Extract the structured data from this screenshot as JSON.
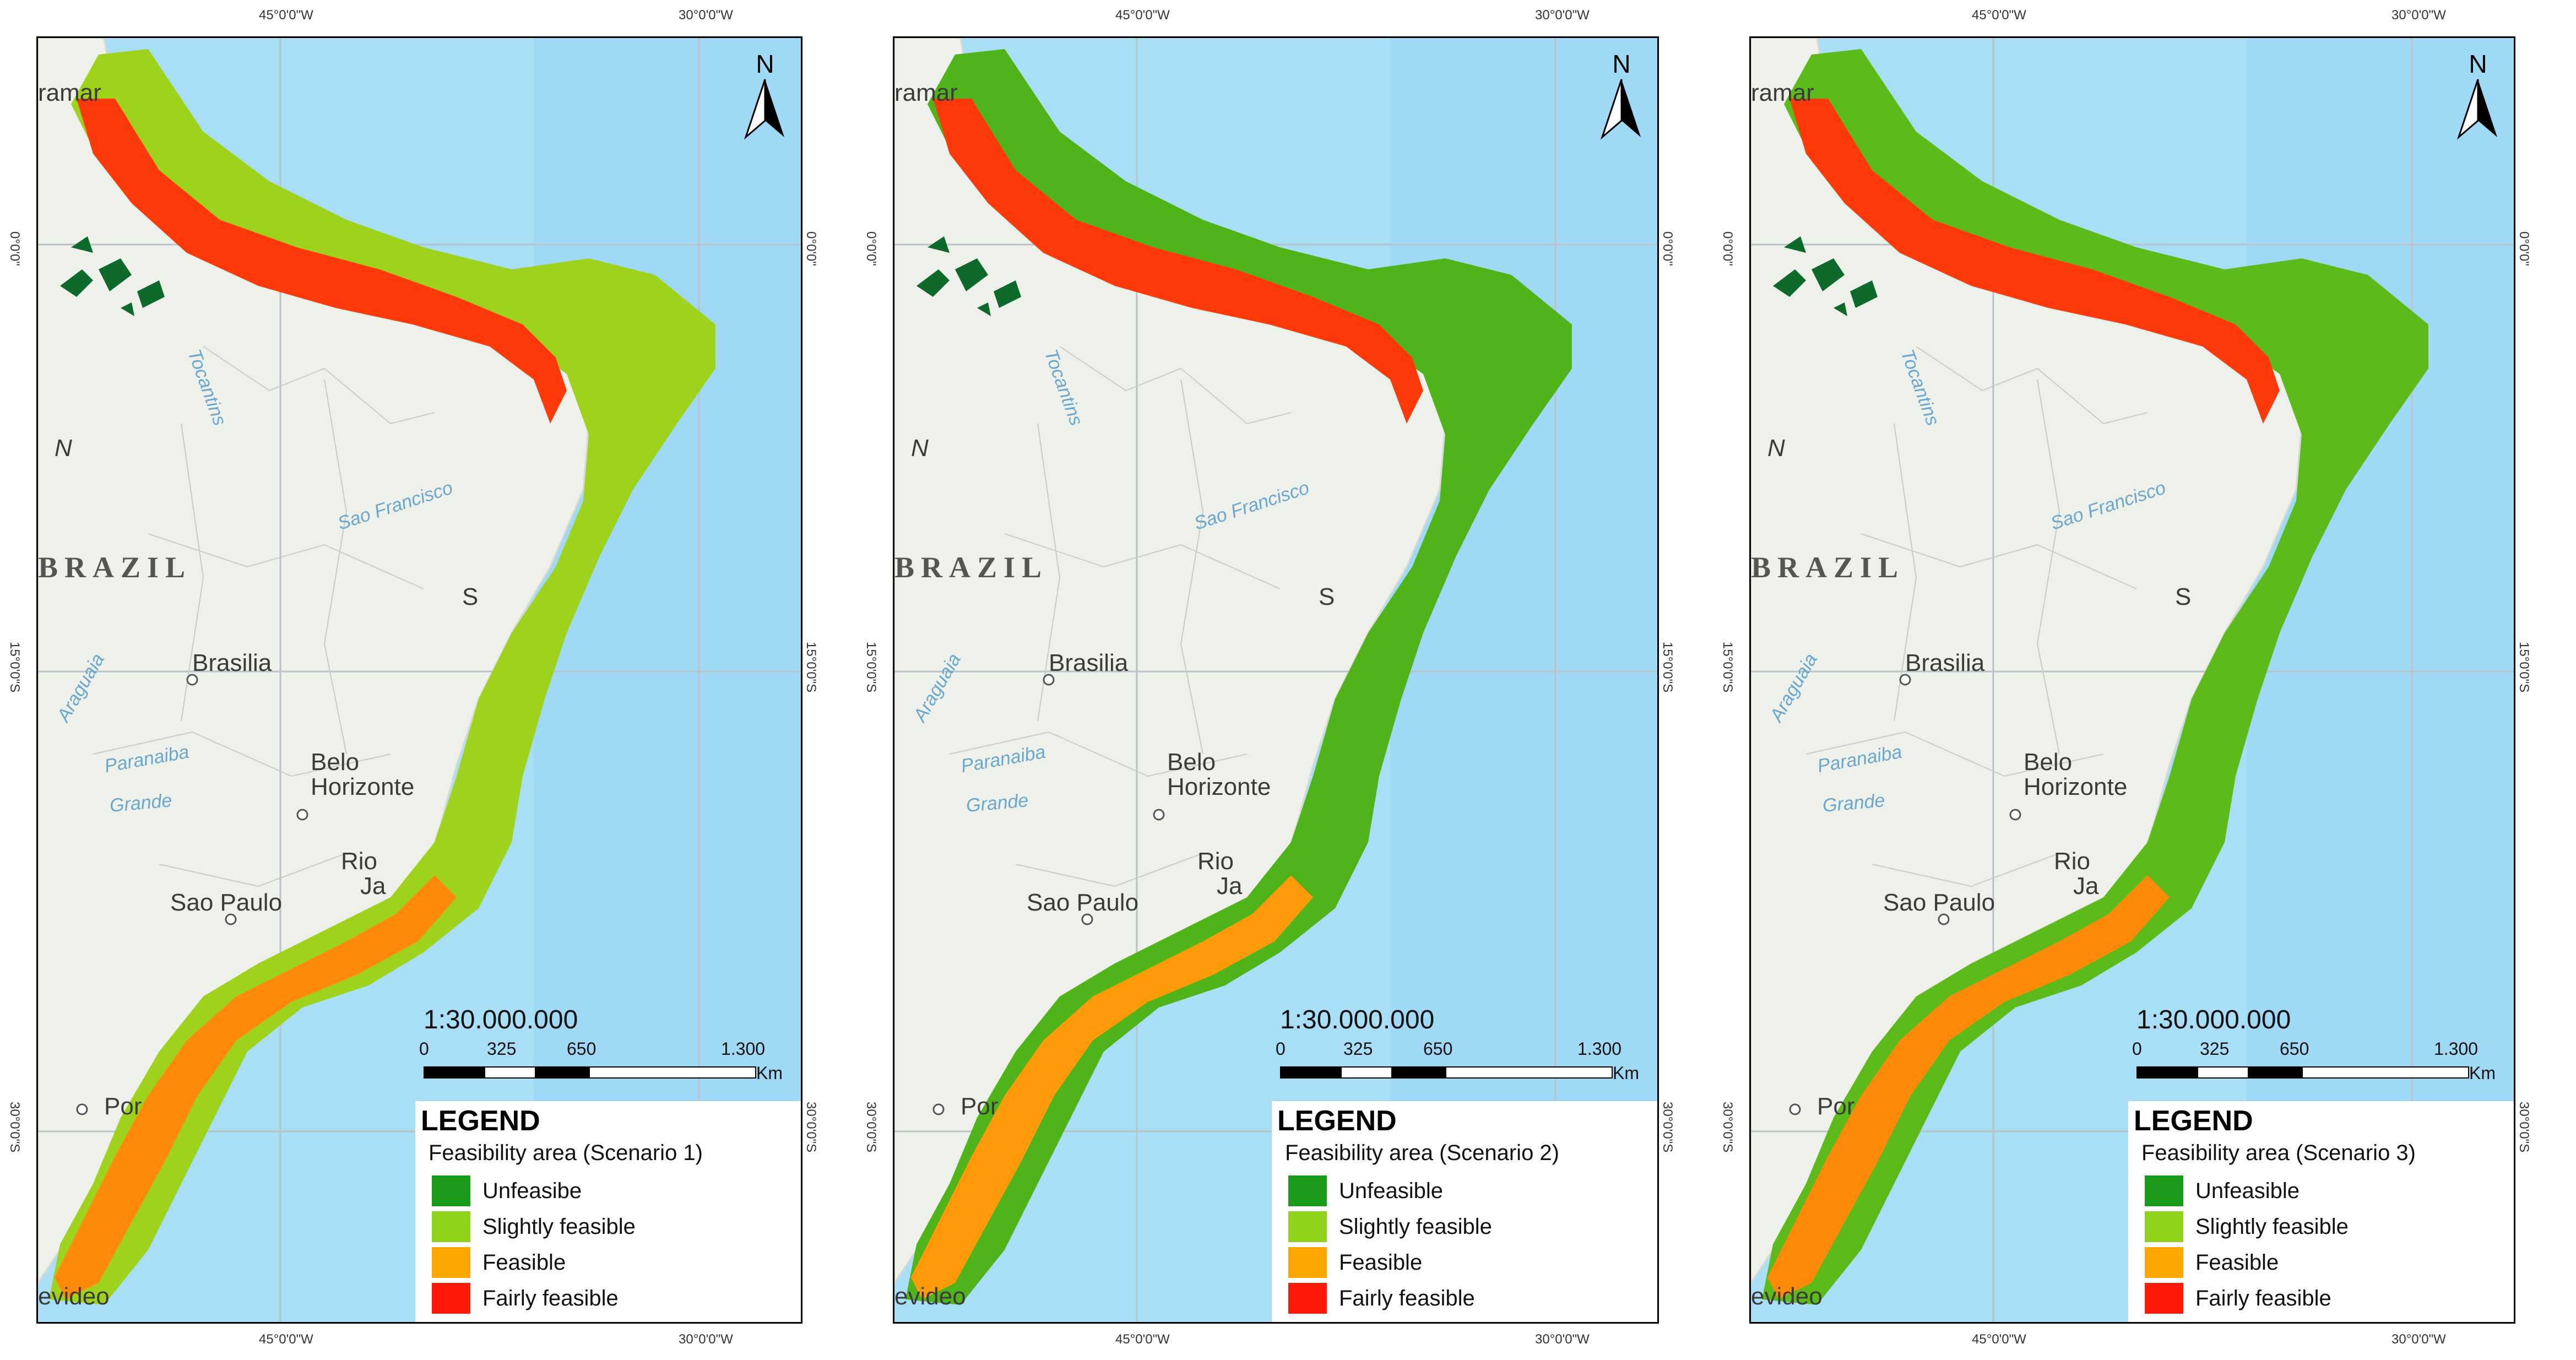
{
  "panels": [
    {
      "scenario_label": "Feasibility area (Scenario 1)",
      "legend_items": [
        "Unfeasibe",
        "Slightly feasible",
        "Feasible",
        "Fairly feasible"
      ]
    },
    {
      "scenario_label": "Feasibility area (Scenario 2)",
      "legend_items": [
        "Unfeasible",
        "Slightly feasible",
        "Feasible",
        "Fairly feasible"
      ]
    },
    {
      "scenario_label": "Feasibility area (Scenario 3)",
      "legend_items": [
        "Unfeasible",
        "Slightly feasible",
        "Feasible",
        "Fairly feasible"
      ]
    }
  ],
  "legend_title": "LEGEND",
  "legend_colors": [
    "#1a9b1a",
    "#8ed31a",
    "#ffa500",
    "#ff1a0a"
  ],
  "north_label": "N",
  "scale": {
    "ratio": "1:30.000.000",
    "labels": [
      "0",
      "325",
      "650",
      "1.300"
    ],
    "unit": "Km"
  },
  "ticks": {
    "lon_left": "45°0'0\"W",
    "lon_right": "30°0'0\"W",
    "lat_0": "0°0'0\"",
    "lat_15": "15°0'0\"S",
    "lat_30": "30°0'0\"S"
  },
  "places": {
    "country": "BRAZIL",
    "brasilia": "Brasilia",
    "belo": "Belo",
    "horizonte": "Horizonte",
    "rio": "Rio",
    "ja": "Ja",
    "sao_paulo": "Sao Paulo",
    "por": "Por",
    "montevideo": "evideo",
    "maranhao": "ramar",
    "n_partial": "N",
    "s_partial": "S"
  },
  "rivers": {
    "tocantins": "Tocantins",
    "sao_francisco": "Sao Francisco",
    "araguaia": "Araguaia",
    "paranaiba": "Paranaiba",
    "grande": "Grande"
  },
  "colors": {
    "ocean": "#a9def7",
    "land": "#eef0ea",
    "unfeasible": "#1a8f1a",
    "slightly": "#9bd21a",
    "feasible": "#ffb000",
    "fairly": "#ff2a0a"
  }
}
